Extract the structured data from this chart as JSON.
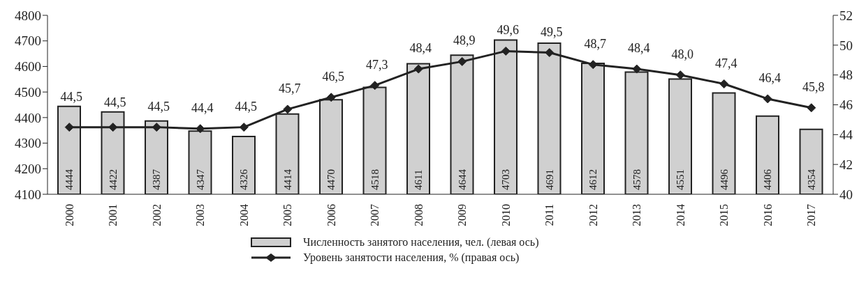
{
  "chart_data": {
    "type": "bar",
    "categories": [
      "2000",
      "2001",
      "2002",
      "2003",
      "2004",
      "2005",
      "2006",
      "2007",
      "2008",
      "2009",
      "2010",
      "2011",
      "2012",
      "2013",
      "2014",
      "2015",
      "2016",
      "2017"
    ],
    "series": [
      {
        "name": "Численность занятого населения, чел. (левая ось)",
        "color": "#d0d0d0",
        "values": [
          4444,
          4422,
          4387,
          4347,
          4326,
          4414,
          4470,
          4518,
          4611,
          4644,
          4703,
          4691,
          4612,
          4578,
          4551,
          4496,
          4406,
          4354
        ],
        "value_labels": [
          "4444",
          "4422",
          "4387",
          "4347",
          "4326",
          "4414",
          "4470",
          "4518",
          "4611",
          "4644",
          "4703",
          "4691",
          "4612",
          "4578",
          "4551",
          "4496",
          "4406",
          "4354"
        ]
      },
      {
        "name": "Уровень занятости населения, % (правая ось)",
        "type": "line",
        "axis": "y2",
        "color": "#222222",
        "marker": "diamond",
        "values": [
          44.5,
          44.5,
          44.5,
          44.4,
          44.5,
          45.7,
          46.5,
          47.3,
          48.4,
          48.9,
          49.6,
          49.5,
          48.7,
          48.4,
          48.0,
          47.4,
          46.4,
          45.8
        ],
        "value_labels": [
          "44,5",
          "44,5",
          "44,5",
          "44,4",
          "44,5",
          "45,7",
          "46,5",
          "47,3",
          "48,4",
          "48,9",
          "49,6",
          "49,5",
          "48,7",
          "48,4",
          "48,0",
          "47,4",
          "46,4",
          "45,8"
        ]
      }
    ],
    "ylim": [
      4100,
      4800
    ],
    "yticks": [
      4100,
      4200,
      4300,
      4400,
      4500,
      4600,
      4700,
      4800
    ],
    "y2lim": [
      40,
      52
    ],
    "y2ticks": [
      40,
      42,
      44,
      46,
      48,
      50,
      52
    ],
    "grid": false,
    "legend": "bottom"
  }
}
